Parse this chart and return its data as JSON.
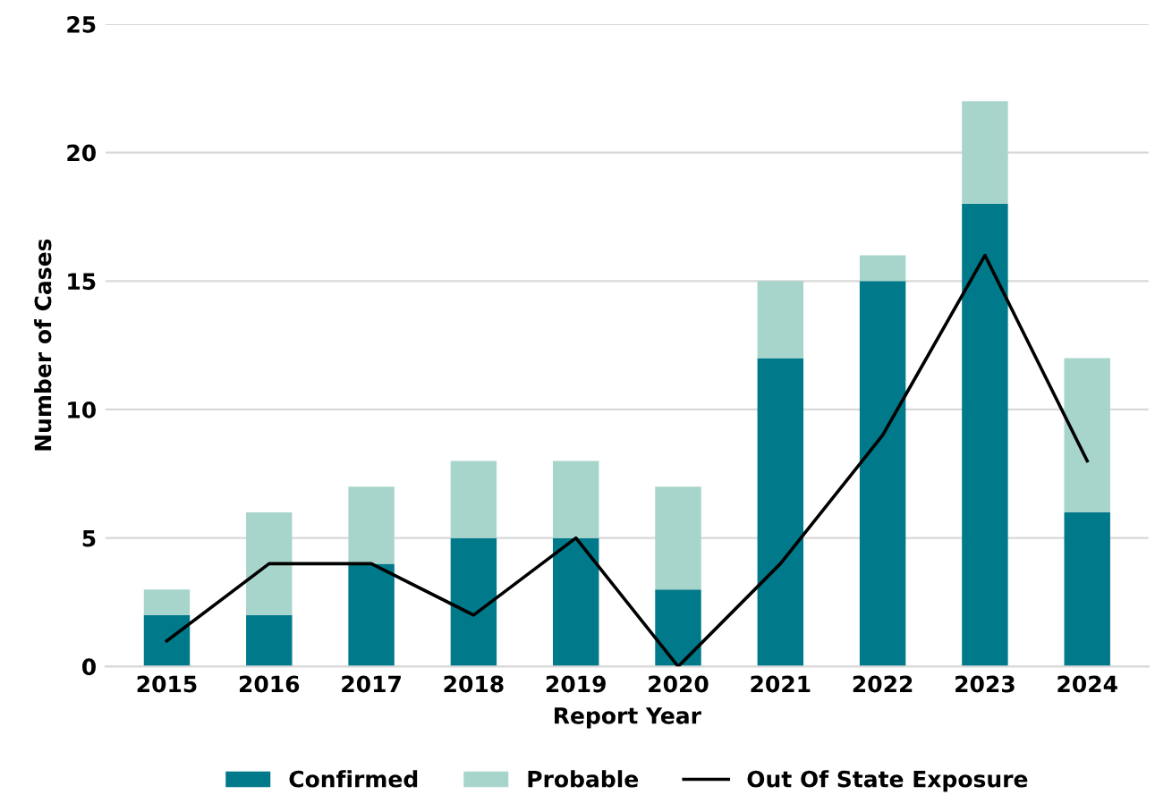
{
  "chart_data": {
    "type": "bar",
    "stacked": true,
    "xlabel": "Report Year",
    "ylabel": "Number of Cases",
    "categories": [
      "2015",
      "2016",
      "2017",
      "2018",
      "2019",
      "2020",
      "2021",
      "2022",
      "2023",
      "2024"
    ],
    "series": [
      {
        "name": "Confirmed",
        "color": "#00798a",
        "values": [
          2,
          2,
          4,
          5,
          5,
          3,
          12,
          15,
          18,
          6
        ]
      },
      {
        "name": "Probable",
        "color": "#a8d5cb",
        "values": [
          1,
          4,
          3,
          3,
          3,
          4,
          3,
          1,
          4,
          6
        ]
      },
      {
        "name": "Out Of State Exposure",
        "type": "line",
        "color": "#000000",
        "values": [
          1,
          4,
          4,
          2,
          5,
          0,
          4,
          9,
          16,
          8
        ]
      }
    ],
    "ylim": [
      0,
      25
    ],
    "yticks": [
      0,
      5,
      10,
      15,
      20,
      25
    ],
    "grid": "y",
    "legend": "bottom",
    "marker": "none",
    "line_style": "solid"
  }
}
